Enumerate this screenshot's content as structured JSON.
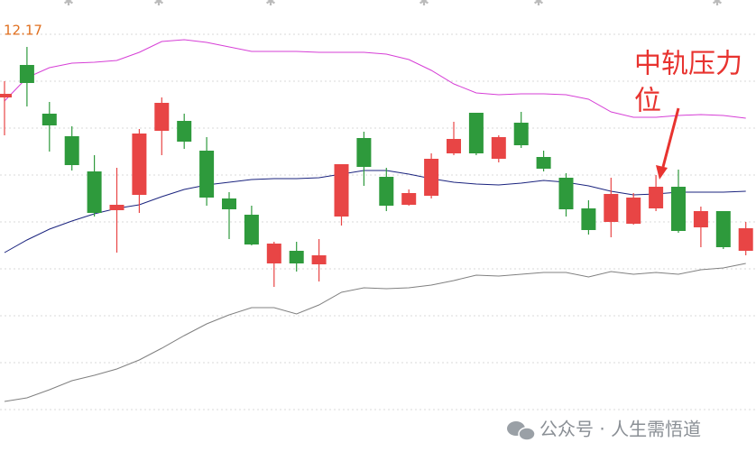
{
  "chart_data": {
    "type": "candlestick",
    "ylim": [
      9.875,
      12.43
    ],
    "gridlines": [
      12.24,
      11.98,
      11.72,
      11.46,
      11.2,
      10.94,
      10.68,
      10.42,
      10.16
    ],
    "up_color": "#e84545",
    "down_color": "#2e9a3c",
    "open": [
      11.89,
      12.07,
      11.8,
      11.675,
      11.48,
      11.265,
      11.35,
      11.705,
      11.76,
      11.595,
      11.33,
      11.24,
      10.97,
      11.04,
      10.965,
      11.23,
      11.665,
      11.45,
      11.295,
      11.345,
      11.58,
      11.805,
      11.55,
      11.75,
      11.56,
      11.445,
      11.275,
      11.2,
      11.19,
      11.275,
      11.395,
      11.17,
      11.26,
      11.04
    ],
    "high": [
      11.98,
      12.17,
      11.865,
      11.73,
      11.57,
      11.5,
      11.715,
      11.89,
      11.8,
      11.67,
      11.365,
      11.29,
      11.09,
      11.09,
      11.105,
      11.52,
      11.7,
      11.5,
      11.38,
      11.58,
      11.755,
      11.805,
      11.68,
      11.81,
      11.595,
      11.47,
      11.32,
      11.445,
      11.36,
      11.46,
      11.49,
      11.285,
      11.26,
      11.2
    ],
    "low": [
      11.68,
      11.84,
      11.59,
      11.485,
      11.23,
      11.03,
      11.25,
      11.57,
      11.605,
      11.29,
      11.105,
      11.07,
      10.84,
      10.925,
      10.87,
      11.18,
      11.4,
      11.26,
      11.29,
      11.33,
      11.57,
      11.57,
      11.53,
      11.61,
      11.48,
      11.23,
      11.13,
      11.115,
      11.185,
      11.26,
      11.14,
      11.06,
      11.05,
      11.015
    ],
    "close": [
      11.91,
      11.97,
      11.735,
      11.515,
      11.25,
      11.295,
      11.69,
      11.86,
      11.645,
      11.335,
      11.27,
      11.075,
      11.08,
      10.97,
      11.015,
      11.52,
      11.505,
      11.29,
      11.36,
      11.55,
      11.66,
      11.58,
      11.67,
      11.625,
      11.495,
      11.27,
      11.155,
      11.355,
      11.335,
      11.395,
      11.15,
      11.26,
      11.06,
      11.165
    ],
    "lines": [
      {
        "color": "#d63fd6",
        "values": [
          11.87,
          12.0,
          12.055,
          12.08,
          12.085,
          12.095,
          12.14,
          12.2,
          12.21,
          12.195,
          12.17,
          12.145,
          12.145,
          12.145,
          12.14,
          12.14,
          12.14,
          12.13,
          12.1,
          12.04,
          11.965,
          11.915,
          11.905,
          11.91,
          11.91,
          11.905,
          11.88,
          11.81,
          11.78,
          11.78,
          11.79,
          11.795,
          11.79,
          11.775
        ]
      },
      {
        "color": "#1a237e",
        "values": [
          11.03,
          11.1,
          11.16,
          11.205,
          11.245,
          11.275,
          11.295,
          11.34,
          11.38,
          11.405,
          11.42,
          11.435,
          11.44,
          11.44,
          11.445,
          11.465,
          11.485,
          11.485,
          11.465,
          11.44,
          11.42,
          11.41,
          11.405,
          11.415,
          11.43,
          11.42,
          11.4,
          11.37,
          11.35,
          11.355,
          11.365,
          11.365,
          11.365,
          11.37
        ]
      },
      {
        "color": "#808080",
        "values": [
          10.205,
          10.225,
          10.27,
          10.32,
          10.35,
          10.385,
          10.435,
          10.5,
          10.57,
          10.635,
          10.685,
          10.725,
          10.725,
          10.69,
          10.74,
          10.81,
          10.835,
          10.83,
          10.835,
          10.85,
          10.875,
          10.905,
          10.9,
          10.91,
          10.92,
          10.92,
          10.895,
          10.925,
          10.91,
          10.92,
          10.91,
          10.935,
          10.945,
          10.97
        ]
      }
    ],
    "max_value": 12.17,
    "annotation": [
      "中轨压力",
      "位"
    ],
    "watermark": "公众号 · 人生需悟道"
  }
}
